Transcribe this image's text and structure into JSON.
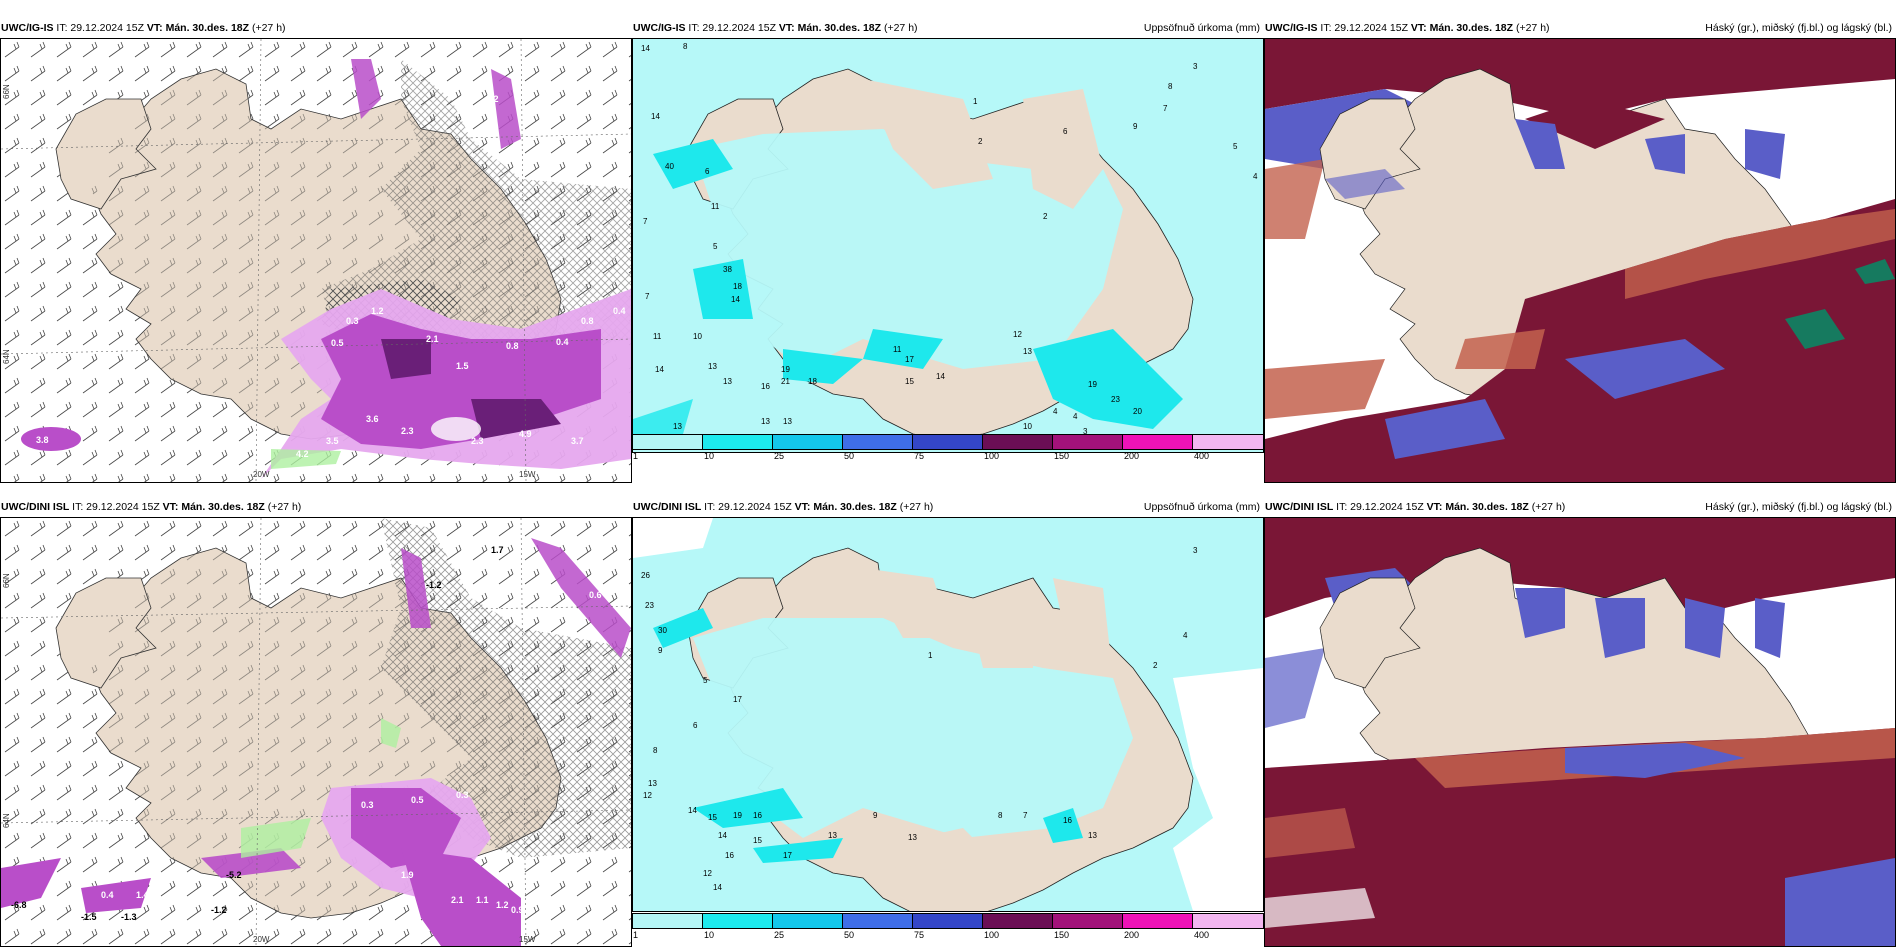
{
  "colors": {
    "land": "#eadccd",
    "precip_light": "#b6f8f8",
    "precip_cyan": "#1ee8ec",
    "magenta_light": "#e6a8ee",
    "magenta": "#b94ec9",
    "magenta_dark": "#6a1f78",
    "hatch": "#666666",
    "green_light": "#aef0a0",
    "cloud_high": "#7a1636",
    "cloud_mid": "#5a5ec8",
    "cloud_low": "#c3614e",
    "cloud_teal": "#167a5f"
  },
  "rows": [
    {
      "model": "UWC/IG-IS",
      "it": "IT: 29.12.2024 15Z",
      "vt": "VT: Mán. 30.des. 18Z",
      "lead": "(+27 h)",
      "precip_title": "Uppsöfnuð úrkoma (mm)",
      "cloud_title": "Háský (gr.), miðský (fj.bl.) og lágský (bl.)",
      "lat_labels": [
        "66N",
        "64N"
      ],
      "lon_labels": [
        "20W",
        "15W"
      ],
      "wind_labels": [
        "3.8",
        "4.2",
        "3.5",
        "3.6",
        "2.3",
        "2.3",
        "4.9",
        "3.7",
        "2.1",
        "1.5",
        "0.8",
        "0.4",
        "0.8",
        "0.4",
        "1.2",
        "1.2",
        "0.3",
        "0.5"
      ],
      "precip_labels": [
        "14",
        "8",
        "14",
        "40",
        "6",
        "11",
        "7",
        "5",
        "38",
        "18",
        "14",
        "7",
        "11",
        "10",
        "14",
        "13",
        "13",
        "16",
        "21",
        "18",
        "19",
        "13",
        "13",
        "13",
        "17",
        "11",
        "15",
        "14",
        "10",
        "12",
        "13",
        "19",
        "23",
        "20",
        "4",
        "4",
        "3",
        "2",
        "6",
        "9",
        "7",
        "8",
        "3",
        "5",
        "4",
        "2",
        "1"
      ]
    },
    {
      "model": "UWC/DINI ISL",
      "it": "IT: 29.12.2024 15Z",
      "vt": "VT: Mán. 30.des. 18Z",
      "lead": "(+27 h)",
      "precip_title": "Uppsöfnuð úrkoma (mm)",
      "cloud_title": "Háský (gr.), miðský (fj.bl.) og lágský (bl.)",
      "lat_labels": [
        "66N",
        "64N"
      ],
      "lon_labels": [
        "20W",
        "15W"
      ],
      "wind_labels": [
        "-6.8",
        "-5.2",
        "-1.2",
        "-1.5",
        "-1.3",
        "1.9",
        "2.1",
        "1.1",
        "1.2",
        "0.9",
        "0.4",
        "1.4",
        "0.3",
        "0.5",
        "0.3",
        "-1.2",
        "1.7",
        "0.6"
      ],
      "precip_labels": [
        "26",
        "23",
        "30",
        "9",
        "8",
        "13",
        "12",
        "14",
        "15",
        "19",
        "16",
        "14",
        "15",
        "13",
        "17",
        "12",
        "16",
        "14",
        "17",
        "13",
        "16",
        "13",
        "9",
        "8",
        "7",
        "6",
        "5",
        "4",
        "3",
        "2",
        "1"
      ]
    }
  ],
  "colorbar": {
    "ticks": [
      "1",
      "10",
      "25",
      "50",
      "75",
      "100",
      "150",
      "200",
      "400"
    ],
    "colors": [
      "#b4f6f6",
      "#1deaee",
      "#14c7eb",
      "#3f6ee8",
      "#3446c8",
      "#6b0e55",
      "#a2127a",
      "#ee13b7",
      "#f2b6f0"
    ]
  }
}
